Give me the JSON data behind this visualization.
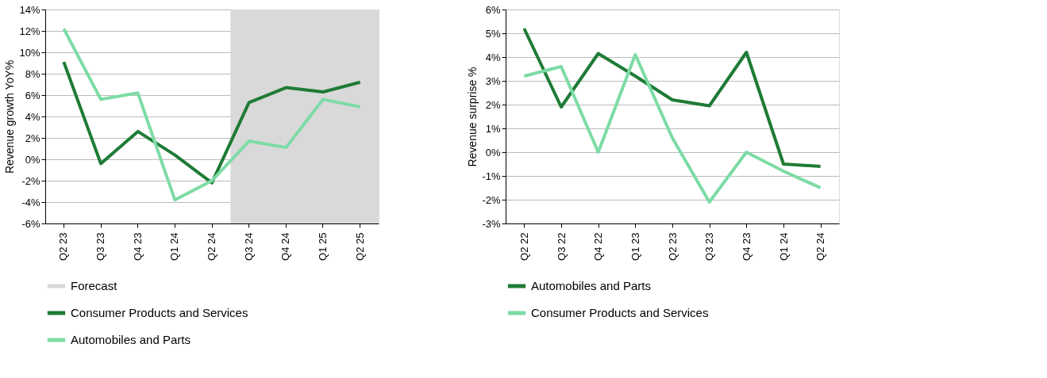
{
  "chart_data": [
    {
      "type": "line",
      "ylabel": "Revenue growth YoY%",
      "categories": [
        "Q2 23",
        "Q3 23",
        "Q4 23",
        "Q1 24",
        "Q2 24",
        "Q3 24",
        "Q4 24",
        "Q1 25",
        "Q2 25"
      ],
      "series": [
        {
          "name": "Consumer Products and Services",
          "color": "#1e7b35",
          "values": [
            9.1,
            -0.4,
            2.6,
            0.4,
            -2.2,
            5.3,
            6.7,
            6.3,
            7.2
          ]
        },
        {
          "name": "Automobiles and Parts",
          "color": "#7ddba5",
          "values": [
            12.2,
            5.6,
            6.2,
            -3.8,
            -2.0,
            1.7,
            1.1,
            5.6,
            4.9
          ]
        }
      ],
      "bands": [
        {
          "axis": "x",
          "from": "Q3 24",
          "to": "Q2 25",
          "label": "Forecast",
          "color": "#d9d9d9"
        }
      ],
      "ylim": [
        -6,
        14
      ],
      "yticks": [
        {
          "value": -6,
          "label": "-6%"
        },
        {
          "value": -4,
          "label": "-4%"
        },
        {
          "value": -2,
          "label": "-2%"
        },
        {
          "value": 0,
          "label": "0%"
        },
        {
          "value": 2,
          "label": "2%"
        },
        {
          "value": 4,
          "label": "4%"
        },
        {
          "value": 6,
          "label": "6%"
        },
        {
          "value": 8,
          "label": "8%"
        },
        {
          "value": 10,
          "label": "10%"
        },
        {
          "value": 12,
          "label": "12%"
        },
        {
          "value": 14,
          "label": "14%"
        }
      ],
      "grid": "y",
      "legend": "bottom",
      "line_style": "solid",
      "marker": "none"
    },
    {
      "type": "line",
      "ylabel": "Revenue surprise %",
      "categories": [
        "Q2 22",
        "Q3 22",
        "Q4 22",
        "Q1 23",
        "Q2 23",
        "Q3 23",
        "Q4 23",
        "Q1 24",
        "Q2 24"
      ],
      "series": [
        {
          "name": "Automobiles and Parts",
          "color": "#1e7b35",
          "values": [
            5.2,
            1.9,
            4.15,
            3.2,
            2.2,
            1.95,
            4.2,
            -0.5,
            -0.6
          ]
        },
        {
          "name": "Consumer Products and Services",
          "color": "#7ddba5",
          "values": [
            3.2,
            3.6,
            0.0,
            4.1,
            0.6,
            -2.1,
            0.0,
            -0.8,
            -1.5
          ]
        }
      ],
      "ylim": [
        -3,
        6
      ],
      "yticks": [
        {
          "value": -3,
          "label": "-3%"
        },
        {
          "value": -2,
          "label": "-2%"
        },
        {
          "value": -1,
          "label": "-1%"
        },
        {
          "value": 0,
          "label": "0%"
        },
        {
          "value": 1,
          "label": "1%"
        },
        {
          "value": 2,
          "label": "2%"
        },
        {
          "value": 3,
          "label": "3%"
        },
        {
          "value": 4,
          "label": "4%"
        },
        {
          "value": 5,
          "label": "5%"
        },
        {
          "value": 6,
          "label": "6%"
        }
      ],
      "grid": "y",
      "legend": "bottom",
      "line_style": "solid",
      "marker": "none"
    }
  ]
}
